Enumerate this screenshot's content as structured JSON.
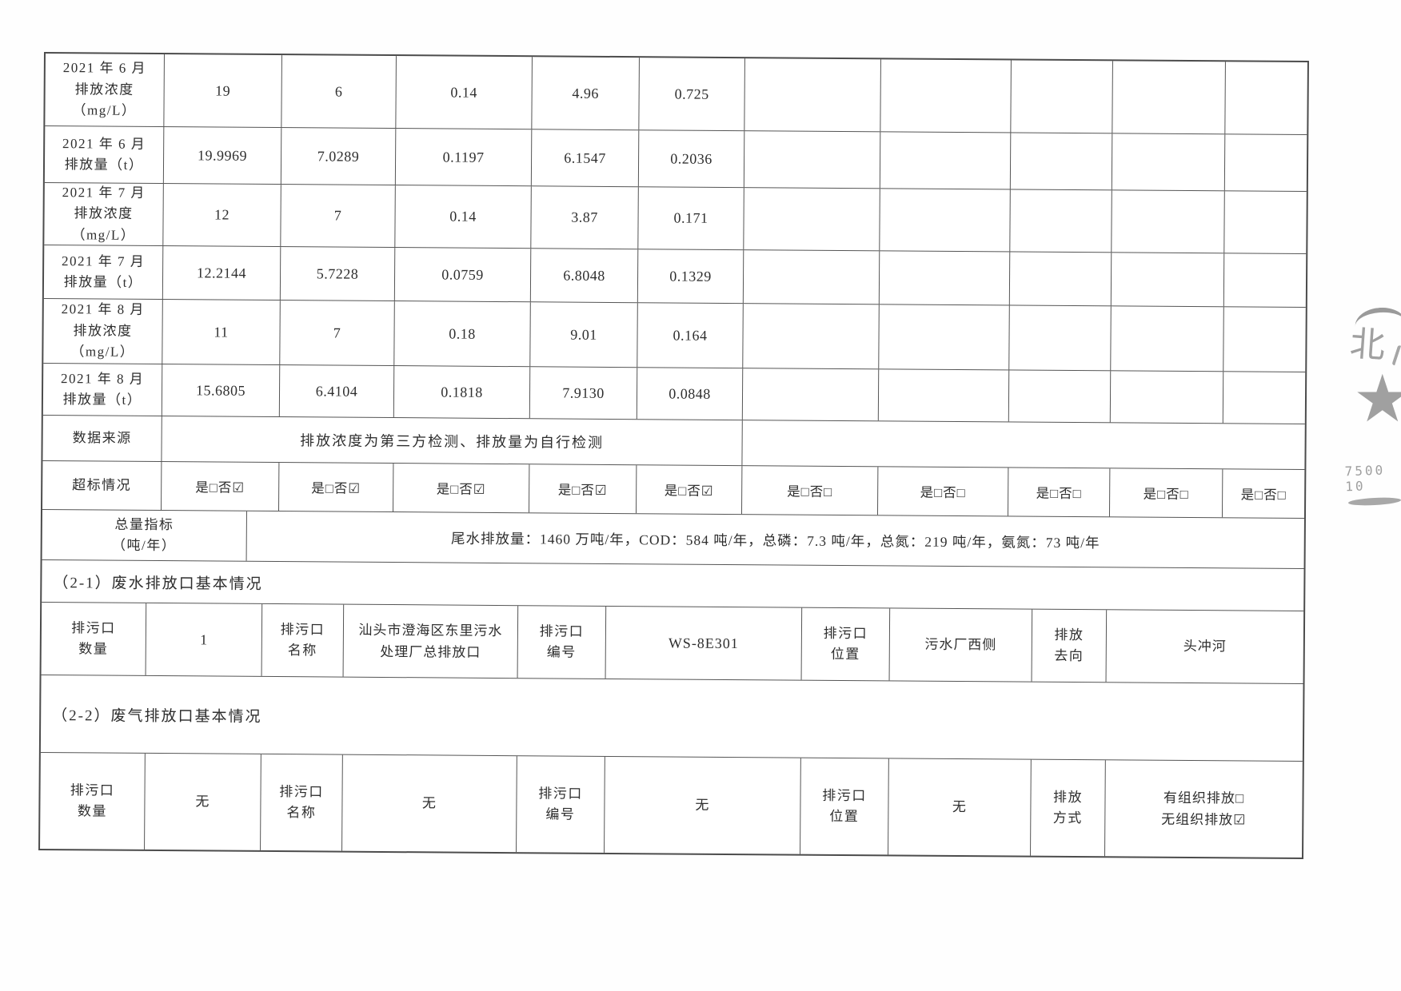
{
  "monitoring_table": {
    "rows": [
      {
        "label": "2021 年 6 月\n排放浓度\n（mg/L）",
        "values": [
          "19",
          "6",
          "0.14",
          "4.96",
          "0.725",
          "",
          "",
          "",
          "",
          ""
        ]
      },
      {
        "label": "2021 年 6 月\n排放量（t）",
        "values": [
          "19.9969",
          "7.0289",
          "0.1197",
          "6.1547",
          "0.2036",
          "",
          "",
          "",
          "",
          ""
        ]
      },
      {
        "label": "2021 年 7 月\n排放浓度\n（mg/L）",
        "values": [
          "12",
          "7",
          "0.14",
          "3.87",
          "0.171",
          "",
          "",
          "",
          "",
          ""
        ]
      },
      {
        "label": "2021 年 7 月\n排放量（t）",
        "values": [
          "12.2144",
          "5.7228",
          "0.0759",
          "6.8048",
          "0.1329",
          "",
          "",
          "",
          "",
          ""
        ]
      },
      {
        "label": "2021 年 8 月\n排放浓度\n（mg/L）",
        "values": [
          "11",
          "7",
          "0.18",
          "9.01",
          "0.164",
          "",
          "",
          "",
          "",
          ""
        ]
      },
      {
        "label": "2021 年 8 月\n排放量（t）",
        "values": [
          "15.6805",
          "6.4104",
          "0.1818",
          "7.9130",
          "0.0848",
          "",
          "",
          "",
          "",
          ""
        ]
      }
    ]
  },
  "data_source": {
    "label": "数据来源",
    "value": "排放浓度为第三方检测、排放量为自行检测"
  },
  "exceedance": {
    "label": "超标情况",
    "cells": [
      "是□否☑",
      "是□否☑",
      "是□否☑",
      "是□否☑",
      "是□否☑",
      "是□否□",
      "是□否□",
      "是□否□",
      "是□否□",
      "是□否□"
    ]
  },
  "total_quota": {
    "label": "总量指标\n（吨/年）",
    "value": "尾水排放量：1460 万吨/年，COD：584 吨/年，总磷：7.3 吨/年，总氮：219 吨/年，氨氮：73 吨/年"
  },
  "section_2_1": {
    "title": "（2-1）废水排放口基本情况",
    "fields": [
      {
        "label": "排污口\n数量",
        "value": "1"
      },
      {
        "label": "排污口\n名称",
        "value": "汕头市澄海区东里污水处理厂总排放口"
      },
      {
        "label": "排污口\n编号",
        "value": "WS-8E301"
      },
      {
        "label": "排污口\n位置",
        "value": "污水厂西侧"
      },
      {
        "label": "排放\n去向",
        "value": "头冲河"
      }
    ]
  },
  "section_2_2": {
    "title": "（2-2）废气排放口基本情况",
    "fields": [
      {
        "label": "排污口\n数量",
        "value": "无"
      },
      {
        "label": "排污口\n名称",
        "value": "无"
      },
      {
        "label": "排污口\n编号",
        "value": "无"
      },
      {
        "label": "排污口\n位置",
        "value": "无"
      },
      {
        "label": "排放\n方式",
        "value": "有组织排放□\n无组织排放☑"
      }
    ]
  },
  "stamp": {
    "char": "北",
    "star": "★",
    "serial": "7500 10"
  }
}
